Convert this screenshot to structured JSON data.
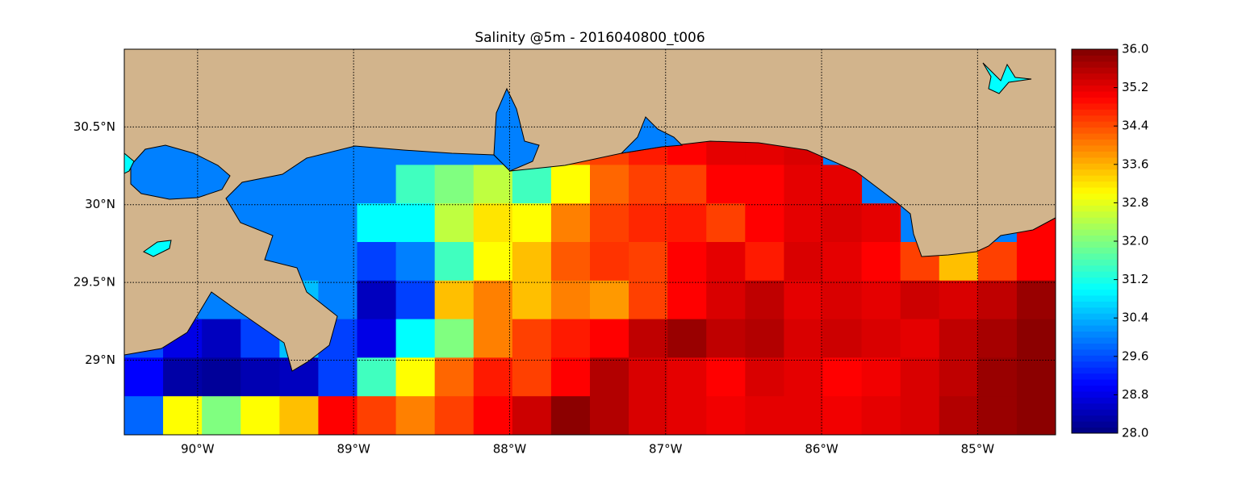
{
  "chart_data": {
    "type": "heatmap",
    "title": "Salinity @5m - 2016040800_t006",
    "xlim": [
      -90.47,
      -84.5
    ],
    "ylim": [
      28.52,
      31.0
    ],
    "xticks": [
      {
        "value": -90,
        "label": "90°W"
      },
      {
        "value": -89,
        "label": "89°W"
      },
      {
        "value": -88,
        "label": "88°W"
      },
      {
        "value": -87,
        "label": "87°W"
      },
      {
        "value": -86,
        "label": "86°W"
      },
      {
        "value": -85,
        "label": "85°W"
      }
    ],
    "yticks": [
      {
        "value": 29,
        "label": "29°N"
      },
      {
        "value": 29.5,
        "label": "29.5°N"
      },
      {
        "value": 30,
        "label": "30°N"
      },
      {
        "value": 30.5,
        "label": "30.5°N"
      }
    ],
    "grid": true,
    "colormap": "jet",
    "clim": [
      28,
      36
    ],
    "cticks": [
      {
        "value": 28,
        "label": "28.0"
      },
      28.8,
      29.6,
      30.4,
      31.2,
      {
        "value": 32,
        "label": "32.0"
      },
      32.8,
      33.6,
      34.4,
      35.2,
      {
        "value": 36,
        "label": "36.0"
      }
    ],
    "values": [
      [
        null,
        null,
        null,
        null,
        null,
        null,
        null,
        null,
        null,
        null,
        null,
        null,
        null,
        null,
        null,
        null,
        null,
        null,
        null,
        null,
        null,
        null,
        null,
        null
      ],
      [
        null,
        null,
        null,
        null,
        null,
        null,
        null,
        null,
        null,
        null,
        null,
        null,
        null,
        null,
        null,
        null,
        null,
        null,
        null,
        null,
        null,
        null,
        null,
        null
      ],
      [
        null,
        null,
        null,
        null,
        null,
        null,
        null,
        null,
        null,
        null,
        33.5,
        34.3,
        34.5,
        34.8,
        35,
        35.2,
        35.2,
        35.3,
        null,
        null,
        null,
        null,
        null,
        null
      ],
      [
        null,
        null,
        null,
        null,
        null,
        null,
        null,
        31.5,
        32,
        32.5,
        31.5,
        33,
        34.2,
        34.5,
        34.5,
        35,
        35,
        35.2,
        35.2,
        null,
        null,
        null,
        null,
        null
      ],
      [
        null,
        null,
        null,
        null,
        null,
        null,
        31,
        31,
        32.5,
        33.2,
        33,
        34,
        34.5,
        34.7,
        34.8,
        34.5,
        35,
        35.2,
        35.3,
        35.2,
        null,
        null,
        null,
        35
      ],
      [
        null,
        null,
        null,
        null,
        null,
        null,
        29.5,
        30,
        31.5,
        33,
        33.5,
        34.3,
        34.6,
        34.5,
        35,
        35.2,
        34.8,
        35.3,
        35.2,
        35,
        34.5,
        33.5,
        34.5,
        35
      ],
      [
        null,
        null,
        null,
        null,
        30.5,
        30,
        28.5,
        29.5,
        33.5,
        34,
        33.5,
        34,
        33.8,
        34.5,
        35,
        35.3,
        35.5,
        35.2,
        35.3,
        35.2,
        35.4,
        35.3,
        35.5,
        35.8
      ],
      [
        29.6,
        28.8,
        28.5,
        29.5,
        30.5,
        29.5,
        28.8,
        31,
        32,
        34,
        34.5,
        34.8,
        35,
        35.5,
        35.8,
        35.5,
        35.6,
        35.3,
        35.4,
        35.3,
        35.2,
        35.5,
        35.7,
        35.9
      ],
      [
        29,
        28.3,
        28.2,
        28.4,
        28.5,
        29.5,
        31.5,
        33,
        34.2,
        34.8,
        34.5,
        35,
        35.6,
        35.3,
        35.2,
        35,
        35.3,
        35.2,
        35,
        35.1,
        35.3,
        35.5,
        35.8,
        35.9
      ],
      [
        29.8,
        33,
        32,
        33,
        33.5,
        35,
        34.5,
        34,
        34.5,
        35,
        35.4,
        35.9,
        35.6,
        35.3,
        35.2,
        35.1,
        35.2,
        35.2,
        35.1,
        35.2,
        35.3,
        35.6,
        35.8,
        35.9
      ]
    ]
  }
}
